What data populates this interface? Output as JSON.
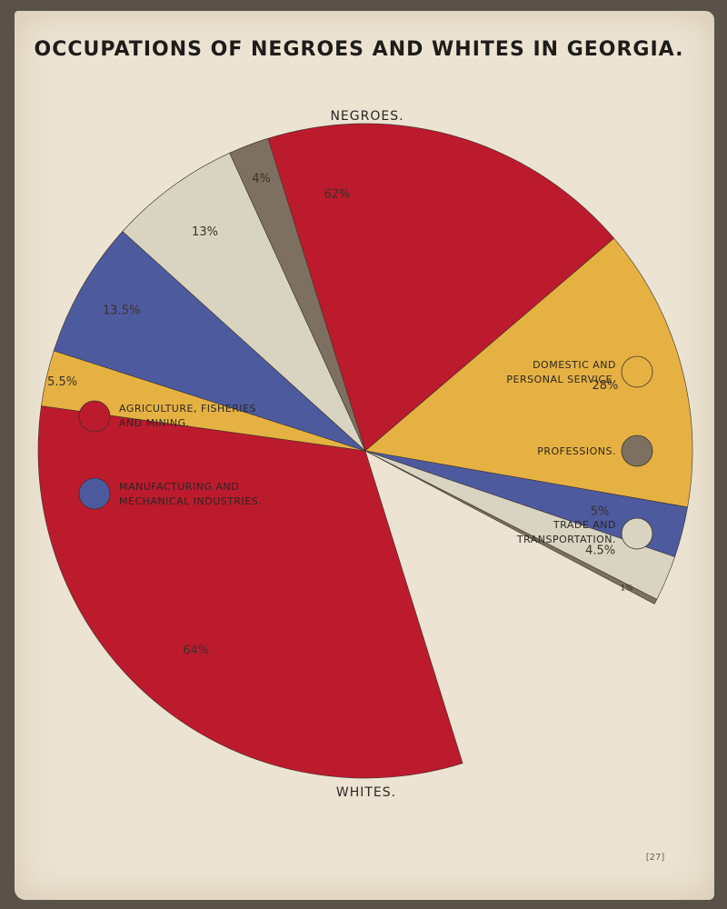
{
  "title": "OCCUPATIONS OF NEGROES AND WHITES IN GEORGIA.",
  "plate_number": "[27]",
  "colors": {
    "agriculture": "#bc1a2d",
    "domestic": "#e6b143",
    "manufacturing": "#4e5a9e",
    "trade": "#d8d4c1",
    "professions": "#7e7060",
    "paper": "#ece3d2"
  },
  "legend": [
    {
      "key": "agriculture",
      "line1": "AGRICULTURE, FISHERIES",
      "line2": "AND MINING.",
      "icon": "red-circle-icon"
    },
    {
      "key": "manufacturing",
      "line1": "MANUFACTURING AND",
      "line2": "MECHANICAL INDUSTRIES.",
      "icon": "blue-circle-icon"
    },
    {
      "key": "domestic",
      "line1": "DOMESTIC AND",
      "line2": "PERSONAL SERVICE.",
      "icon": "yellow-circle-icon"
    },
    {
      "key": "professions",
      "line1": "PROFESSIONS.",
      "line2": "",
      "icon": "brown-circle-icon"
    },
    {
      "key": "trade",
      "line1": "TRADE AND",
      "line2": "TRANSPORTATION.",
      "icon": "beige-circle-icon"
    }
  ],
  "chart_data": {
    "type": "pie",
    "title": "OCCUPATIONS OF NEGROES AND WHITES IN GEORGIA.",
    "categories": [
      "AGRICULTURE, FISHERIES AND MINING.",
      "DOMESTIC AND PERSONAL SERVICE.",
      "MANUFACTURING AND MECHANICAL INDUSTRIES.",
      "TRADE AND TRANSPORTATION.",
      "PROFESSIONS."
    ],
    "series": [
      {
        "name": "NEGROES.",
        "slices": [
          {
            "key": "agriculture",
            "value": 62,
            "label": "62%"
          },
          {
            "key": "domestic",
            "value": 28,
            "label": "28%"
          },
          {
            "key": "manufacturing",
            "value": 5,
            "label": "5%"
          },
          {
            "key": "trade",
            "value": 4.5,
            "label": "4.5%"
          },
          {
            "key": "professions",
            "value": 0.5,
            "label": "1%"
          }
        ]
      },
      {
        "name": "WHITES.",
        "slices": [
          {
            "key": "agriculture",
            "value": 64,
            "label": "64%"
          },
          {
            "key": "domestic",
            "value": 5.5,
            "label": "5.5%"
          },
          {
            "key": "manufacturing",
            "value": 13.5,
            "label": "13.5%"
          },
          {
            "key": "trade",
            "value": 13,
            "label": "13%"
          },
          {
            "key": "professions",
            "value": 4,
            "label": "4%"
          }
        ]
      }
    ],
    "legend_placement": "left and right"
  }
}
